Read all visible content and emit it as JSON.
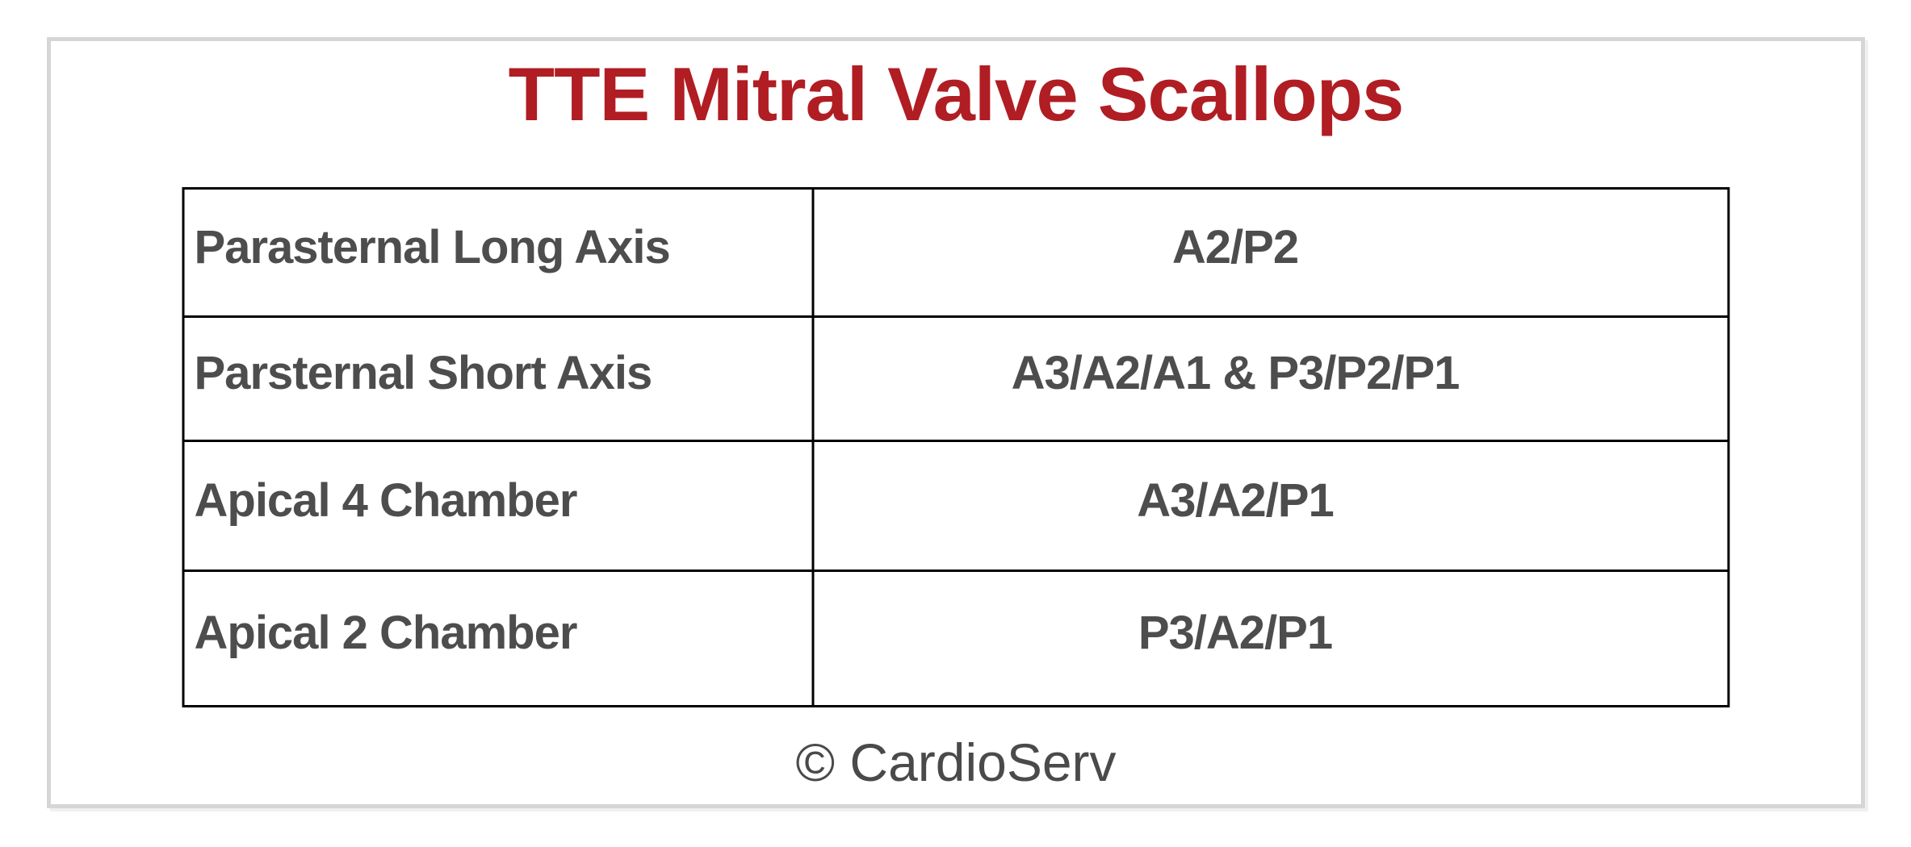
{
  "title": "TTE Mitral Valve Scallops",
  "colors": {
    "title_red": "#b01d23",
    "table_text_gray": "#4d4d4d",
    "table_border": "#000000",
    "card_border": "#d6d6d6",
    "background": "#ffffff"
  },
  "table": {
    "rows": [
      {
        "view": "Parasternal Long Axis",
        "scallops": "A2/P2"
      },
      {
        "view": "Parsternal Short Axis",
        "scallops": "A3/A2/A1 & P3/P2/P1"
      },
      {
        "view": "Apical 4 Chamber",
        "scallops": "A3/A2/P1"
      },
      {
        "view": "Apical 2 Chamber",
        "scallops": "P3/A2/P1"
      }
    ]
  },
  "footer": {
    "copyright": "© CardioServ"
  }
}
